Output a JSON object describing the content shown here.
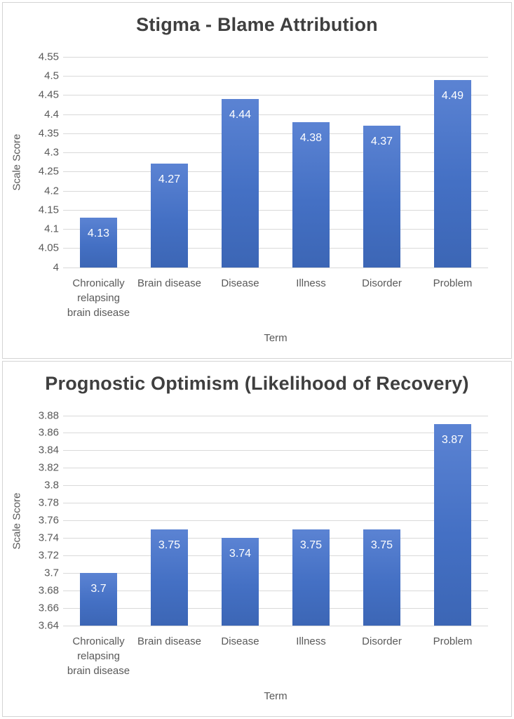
{
  "page": {
    "background_color": "#ffffff",
    "panel_border_color": "#d4d4d4",
    "gridline_color": "#d9d9d9",
    "axis_text_color": "#595959",
    "title_text_color": "#3f3f3f",
    "bar_color": "#4472c4",
    "bar_gradient_top": "#5b83d3",
    "bar_gradient_bottom": "#3c66b5",
    "data_label_color": "#ffffff"
  },
  "chart_data": [
    {
      "type": "bar",
      "title": "Stigma - Blame Attribution",
      "xlabel": "Term",
      "ylabel": "Scale Score",
      "categories": [
        "Chronically relapsing brain disease",
        "Brain disease",
        "Disease",
        "Illness",
        "Disorder",
        "Problem"
      ],
      "values": [
        4.13,
        4.27,
        4.44,
        4.38,
        4.37,
        4.49
      ],
      "value_labels": [
        "4.13",
        "4.27",
        "4.44",
        "4.38",
        "4.37",
        "4.49"
      ],
      "ylim": [
        4,
        4.55
      ],
      "ytick_step": 0.05,
      "ytick_labels": [
        "4.55",
        "4.5",
        "4.45",
        "4.4",
        "4.35",
        "4.3",
        "4.25",
        "4.2",
        "4.15",
        "4.1",
        "4.05",
        "4"
      ],
      "grid": true,
      "legend": "none"
    },
    {
      "type": "bar",
      "title": "Prognostic Optimism (Likelihood of Recovery)",
      "xlabel": "Term",
      "ylabel": "Scale Score",
      "categories": [
        "Chronically relapsing brain disease",
        "Brain disease",
        "Disease",
        "Illness",
        "Disorder",
        "Problem"
      ],
      "values": [
        3.7,
        3.75,
        3.74,
        3.75,
        3.75,
        3.87
      ],
      "value_labels": [
        "3.7",
        "3.75",
        "3.74",
        "3.75",
        "3.75",
        "3.87"
      ],
      "ylim": [
        3.64,
        3.88
      ],
      "ytick_step": 0.02,
      "ytick_labels": [
        "3.88",
        "3.86",
        "3.84",
        "3.82",
        "3.8",
        "3.78",
        "3.76",
        "3.74",
        "3.72",
        "3.7",
        "3.68",
        "3.66",
        "3.64"
      ],
      "grid": true,
      "legend": "none"
    }
  ]
}
